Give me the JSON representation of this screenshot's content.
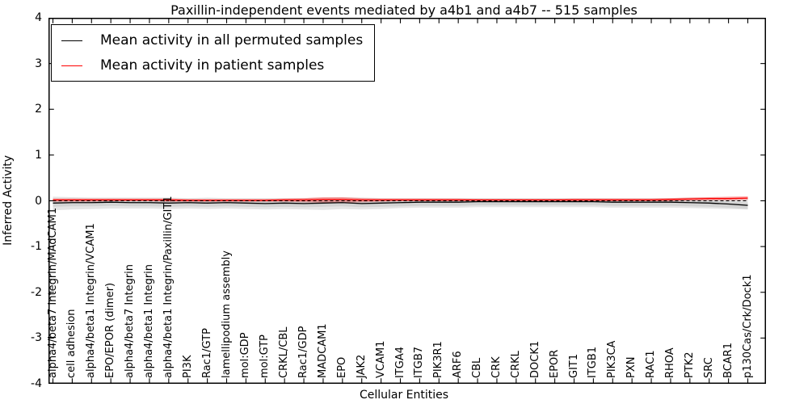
{
  "chart_data": {
    "type": "line",
    "title": "Paxillin-independent events mediated by a4b1 and a4b7 -- 515 samples",
    "xlabel": "Cellular Entities",
    "ylabel": "Inferred Activity",
    "ylim": [
      -4,
      4
    ],
    "yticks": [
      4,
      3,
      2,
      1,
      0,
      -1,
      -2,
      -3,
      -4
    ],
    "grid": false,
    "legend_position": "upper left",
    "categories": [
      "alpha4/beta7 Integrin/MAdCAM1",
      "cell adhesion",
      "alpha4/beta1 Integrin/VCAM1",
      "EPO/EPOR (dimer)",
      "alpha4/beta7 Integrin",
      "alpha4/beta1 Integrin",
      "alpha4/beta1 Integrin/Paxillin/GIT1",
      "PI3K",
      "Rac1/GTP",
      "lamellipodium assembly",
      "mol:GDP",
      "mol:GTP",
      "CRKL/CBL",
      "Rac1/GDP",
      "MADCAM1",
      "EPO",
      "JAK2",
      "VCAM1",
      "ITGA4",
      "ITGB7",
      "PIK3R1",
      "ARF6",
      "CBL",
      "CRK",
      "CRKL",
      "DOCK1",
      "EPOR",
      "GIT1",
      "ITGB1",
      "PIK3CA",
      "PXN",
      "RAC1",
      "RHOA",
      "PTK2",
      "SRC",
      "BCAR1",
      "p130Cas/Crk/Dock1"
    ],
    "series": [
      {
        "name": "Mean activity in all permuted samples",
        "color": "#000000",
        "values": [
          -0.05,
          -0.04,
          -0.04,
          -0.03,
          -0.04,
          -0.04,
          -0.05,
          -0.04,
          -0.05,
          -0.04,
          -0.05,
          -0.06,
          -0.05,
          -0.06,
          -0.05,
          -0.04,
          -0.06,
          -0.05,
          -0.04,
          -0.03,
          -0.03,
          -0.03,
          -0.02,
          -0.02,
          -0.02,
          -0.02,
          -0.02,
          -0.02,
          -0.02,
          -0.03,
          -0.03,
          -0.03,
          -0.03,
          -0.04,
          -0.05,
          -0.07,
          -0.1
        ]
      },
      {
        "name": "Mean activity in patient samples",
        "color": "#ff0000",
        "values": [
          0.02,
          0.02,
          0.02,
          0.02,
          0.02,
          0.02,
          0.02,
          0.01,
          0.01,
          0.01,
          0.01,
          0.01,
          0.02,
          0.02,
          0.03,
          0.03,
          0.02,
          0.02,
          0.02,
          0.02,
          0.02,
          0.02,
          0.02,
          0.02,
          0.02,
          0.02,
          0.02,
          0.02,
          0.02,
          0.02,
          0.02,
          0.02,
          0.03,
          0.04,
          0.05,
          0.05,
          0.06
        ]
      }
    ],
    "bands": [
      {
        "name": "permuted-spread-outer",
        "color": "rgba(0,0,0,0.10)",
        "upper": [
          0.09,
          0.08,
          0.07,
          0.07,
          0.07,
          0.07,
          0.07,
          0.06,
          0.07,
          0.06,
          0.06,
          0.06,
          0.06,
          0.06,
          0.07,
          0.08,
          0.07,
          0.06,
          0.06,
          0.06,
          0.06,
          0.06,
          0.06,
          0.06,
          0.06,
          0.06,
          0.06,
          0.06,
          0.06,
          0.06,
          0.06,
          0.06,
          0.06,
          0.07,
          0.07,
          0.07,
          0.06
        ],
        "lower": [
          -0.21,
          -0.19,
          -0.18,
          -0.17,
          -0.17,
          -0.17,
          -0.18,
          -0.17,
          -0.18,
          -0.17,
          -0.18,
          -0.19,
          -0.18,
          -0.19,
          -0.2,
          -0.18,
          -0.19,
          -0.18,
          -0.16,
          -0.15,
          -0.15,
          -0.15,
          -0.14,
          -0.14,
          -0.14,
          -0.14,
          -0.14,
          -0.14,
          -0.14,
          -0.15,
          -0.15,
          -0.15,
          -0.15,
          -0.16,
          -0.17,
          -0.18,
          -0.19
        ]
      },
      {
        "name": "permuted-spread-inner",
        "color": "rgba(0,0,0,0.08)",
        "upper": [
          0.01,
          0.02,
          0.02,
          0.03,
          0.02,
          0.02,
          0.01,
          0.02,
          0.01,
          0.02,
          0.01,
          0.0,
          0.01,
          0.0,
          0.01,
          0.02,
          0.0,
          0.01,
          0.02,
          0.03,
          0.03,
          0.03,
          0.04,
          0.04,
          0.04,
          0.04,
          0.04,
          0.04,
          0.04,
          0.03,
          0.03,
          0.03,
          0.03,
          0.02,
          0.01,
          -0.01,
          -0.04
        ],
        "lower": [
          -0.13,
          -0.12,
          -0.12,
          -0.11,
          -0.12,
          -0.12,
          -0.13,
          -0.12,
          -0.13,
          -0.12,
          -0.13,
          -0.14,
          -0.13,
          -0.14,
          -0.13,
          -0.12,
          -0.14,
          -0.13,
          -0.12,
          -0.11,
          -0.11,
          -0.11,
          -0.1,
          -0.1,
          -0.1,
          -0.1,
          -0.1,
          -0.1,
          -0.1,
          -0.11,
          -0.11,
          -0.11,
          -0.11,
          -0.12,
          -0.13,
          -0.15,
          -0.18
        ]
      },
      {
        "name": "patient-spread",
        "color": "rgba(255,0,0,0.30)",
        "upper": [
          0.05,
          0.05,
          0.05,
          0.05,
          0.05,
          0.05,
          0.05,
          0.04,
          0.04,
          0.04,
          0.04,
          0.04,
          0.05,
          0.06,
          0.08,
          0.08,
          0.06,
          0.05,
          0.05,
          0.05,
          0.05,
          0.05,
          0.04,
          0.04,
          0.04,
          0.04,
          0.04,
          0.05,
          0.05,
          0.05,
          0.05,
          0.05,
          0.06,
          0.07,
          0.08,
          0.09,
          0.1
        ],
        "lower": [
          -0.02,
          -0.02,
          -0.02,
          -0.01,
          -0.01,
          -0.01,
          -0.02,
          -0.02,
          -0.02,
          -0.02,
          -0.02,
          -0.02,
          -0.02,
          -0.03,
          -0.04,
          -0.04,
          -0.03,
          -0.02,
          -0.01,
          -0.01,
          -0.01,
          -0.01,
          -0.01,
          -0.01,
          -0.01,
          -0.01,
          -0.01,
          -0.01,
          -0.01,
          -0.01,
          -0.01,
          -0.01,
          -0.01,
          0.0,
          0.01,
          0.01,
          0.02
        ]
      }
    ],
    "zero_line": {
      "value": 0,
      "style": "dashed",
      "color": "#000000"
    }
  }
}
